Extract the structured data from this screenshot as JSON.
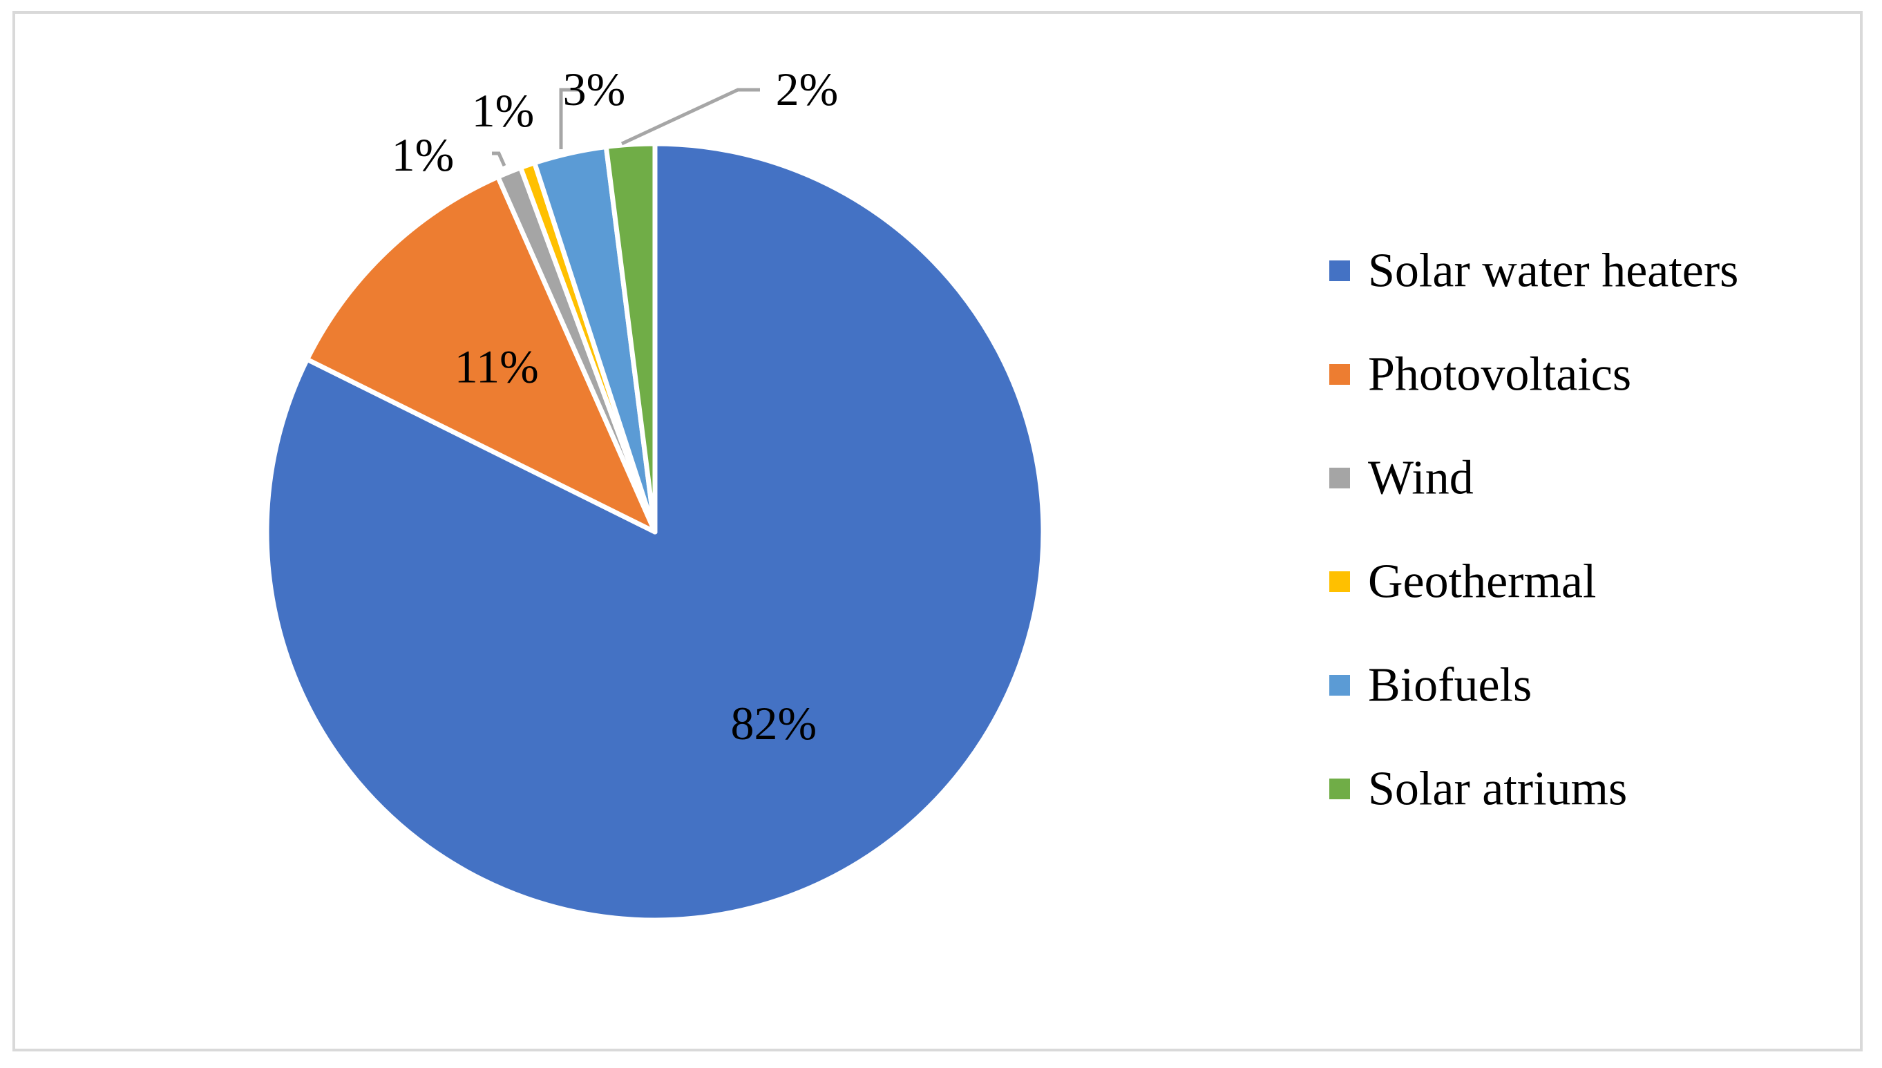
{
  "chart_data": {
    "type": "pie",
    "title": "",
    "start_angle_deg": 0,
    "direction": "clockwise",
    "slices": [
      {
        "label": "Solar water heaters",
        "value": 82,
        "display": "82%",
        "color": "#4472C4"
      },
      {
        "label": "Photovoltaics",
        "value": 11,
        "display": "11%",
        "color": "#ED7D31"
      },
      {
        "label": "Wind",
        "value": 1,
        "display": "1%",
        "color": "#A5A5A5"
      },
      {
        "label": "Geothermal",
        "value": 0.6,
        "display": "",
        "color": "#FFC000"
      },
      {
        "label": "Biofuels",
        "value": 3,
        "display": "3%",
        "color": "#5B9BD5"
      },
      {
        "label": "Solar atriums",
        "value": 2,
        "display": "2%",
        "color": "#70AD47"
      }
    ],
    "extra_labels": [
      {
        "label": "Geothermal",
        "display": "1%"
      }
    ],
    "legend_position": "right"
  }
}
